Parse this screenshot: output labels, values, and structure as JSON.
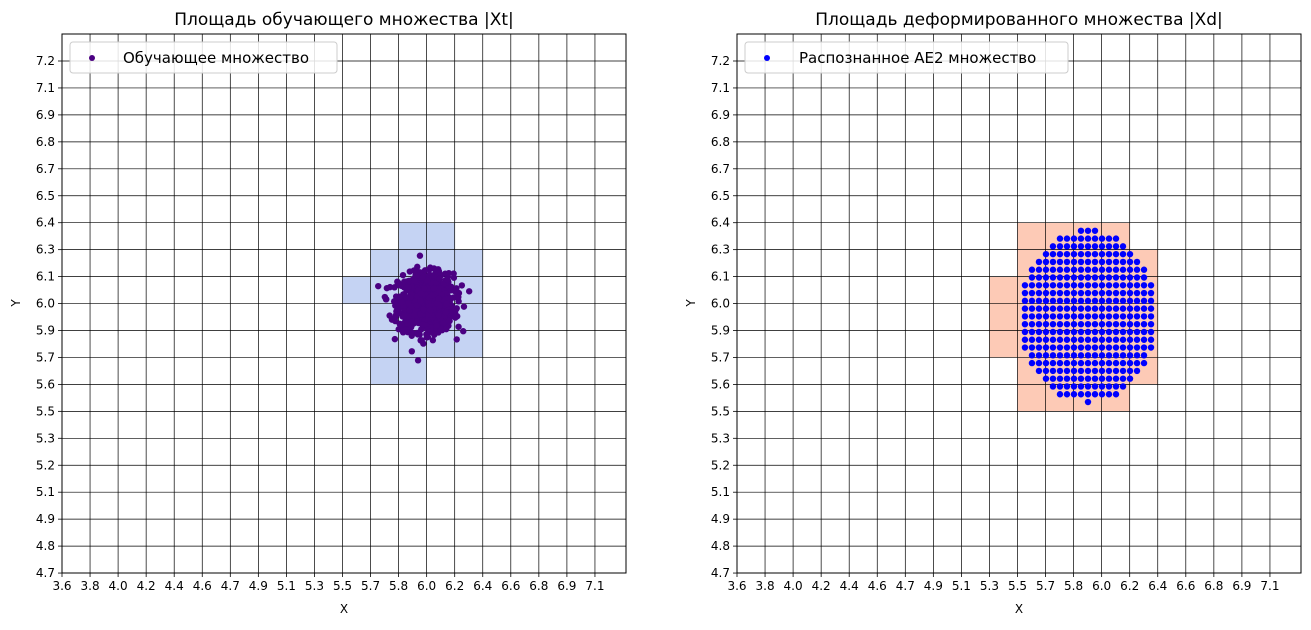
{
  "chart_data": [
    {
      "type": "scatter",
      "title": "Площадь обучающего множества |Xt|",
      "xlabel": "X",
      "ylabel": "Y",
      "x_tick_labels": [
        "3.6",
        "3.8",
        "4.0",
        "4.2",
        "4.4",
        "4.6",
        "4.7",
        "4.9",
        "5.1",
        "5.3",
        "5.5",
        "5.7",
        "5.8",
        "6.0",
        "6.2",
        "6.4",
        "6.6",
        "6.8",
        "6.9",
        "7.1"
      ],
      "y_tick_labels": [
        "7.2",
        "7.1",
        "6.9",
        "6.8",
        "6.7",
        "6.5",
        "6.4",
        "6.3",
        "6.1",
        "6.0",
        "5.9",
        "5.7",
        "5.6",
        "5.5",
        "5.3",
        "5.2",
        "5.1",
        "4.9",
        "4.8",
        "4.7"
      ],
      "xlim": [
        3.6,
        7.3
      ],
      "ylim": [
        4.7,
        7.33
      ],
      "grid": true,
      "legend": {
        "position": "top-left",
        "entries": [
          "Обучающее множество"
        ]
      },
      "point_color": "#4b0082",
      "fill_color": "#c5d3f3",
      "filled_cells": [
        [
          5.8,
          6.2,
          6.3,
          6.4
        ],
        [
          5.7,
          6.4,
          6.1,
          6.3
        ],
        [
          5.5,
          6.4,
          6.0,
          6.1
        ],
        [
          5.7,
          6.4,
          5.9,
          6.0
        ],
        [
          5.7,
          6.4,
          5.7,
          5.9
        ],
        [
          5.7,
          6.0,
          5.6,
          5.7
        ]
      ],
      "series": [
        {
          "name": "Обучающее множество",
          "distribution": "normal",
          "count": 1000,
          "mean": [
            5.99,
            6.02
          ],
          "std": [
            0.09,
            0.07
          ]
        }
      ]
    },
    {
      "type": "scatter",
      "title": "Площадь деформированного множества |Xd|",
      "xlabel": "X",
      "ylabel": "Y",
      "x_tick_labels": [
        "3.6",
        "3.8",
        "4.0",
        "4.2",
        "4.4",
        "4.6",
        "4.7",
        "4.9",
        "5.1",
        "5.3",
        "5.5",
        "5.7",
        "5.8",
        "6.0",
        "6.2",
        "6.4",
        "6.6",
        "6.8",
        "6.9",
        "7.1"
      ],
      "y_tick_labels": [
        "7.2",
        "7.1",
        "6.9",
        "6.8",
        "6.7",
        "6.5",
        "6.4",
        "6.3",
        "6.1",
        "6.0",
        "5.9",
        "5.7",
        "5.6",
        "5.5",
        "5.3",
        "5.2",
        "5.1",
        "4.9",
        "4.8",
        "4.7"
      ],
      "xlim": [
        3.6,
        7.3
      ],
      "ylim": [
        4.7,
        7.33
      ],
      "grid": true,
      "legend": {
        "position": "top-left",
        "entries": [
          "Распознанное AE2 множество"
        ]
      },
      "point_color": "#0000ff",
      "fill_color": "#fdcab6",
      "filled_cells": [
        [
          5.5,
          6.2,
          6.3,
          6.4
        ],
        [
          5.5,
          6.4,
          6.1,
          6.3
        ],
        [
          5.3,
          6.4,
          6.0,
          6.1
        ],
        [
          5.3,
          6.4,
          5.9,
          6.0
        ],
        [
          5.3,
          6.4,
          5.7,
          5.9
        ],
        [
          5.5,
          6.4,
          5.6,
          5.7
        ],
        [
          5.5,
          6.2,
          5.5,
          5.6
        ]
      ],
      "series": [
        {
          "name": "Распознанное AE2 множество",
          "distribution": "ellipse-grid",
          "center": [
            5.905,
            5.955
          ],
          "radius": [
            0.46,
            0.42
          ],
          "step": [
            0.046,
            0.038
          ]
        }
      ]
    }
  ]
}
